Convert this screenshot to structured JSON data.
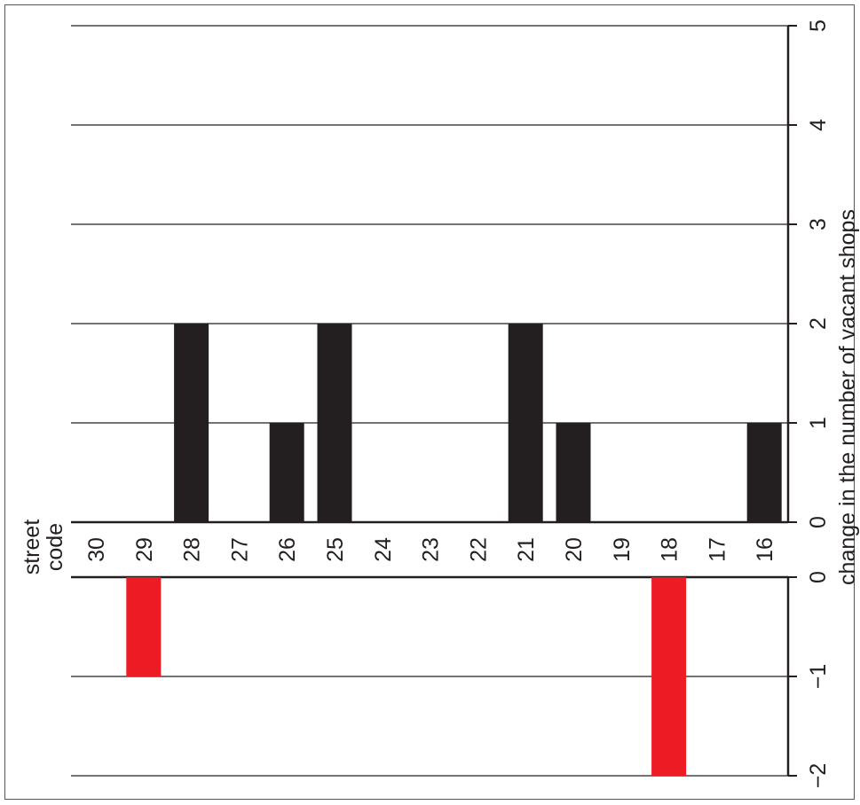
{
  "chart_data": {
    "type": "bar",
    "orientation": "rotated (value axis on the right, categories across the middle)",
    "categories": [
      "30",
      "29",
      "28",
      "27",
      "26",
      "25",
      "24",
      "23",
      "22",
      "21",
      "20",
      "19",
      "18",
      "17",
      "16"
    ],
    "values": [
      0,
      -1,
      2,
      0,
      1,
      2,
      0,
      0,
      0,
      2,
      1,
      0,
      -2,
      0,
      1
    ],
    "category_label": [
      "street",
      "code"
    ],
    "value_label": "change in the number of vacant shops",
    "upper_ticks": [
      "0",
      "1",
      "2",
      "3",
      "4",
      "5"
    ],
    "lower_ticks": [
      "0",
      "−1",
      "−2"
    ],
    "upper_range": [
      0,
      5
    ],
    "lower_range": [
      -2,
      0
    ],
    "grid": true,
    "colors": {
      "positive": "#231f20",
      "negative": "#ed1c24",
      "axis": "#231f20"
    }
  }
}
